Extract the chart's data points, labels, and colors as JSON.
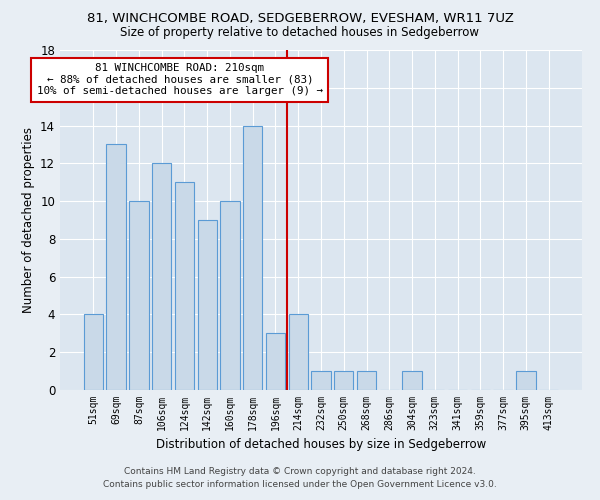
{
  "title": "81, WINCHCOMBE ROAD, SEDGEBERROW, EVESHAM, WR11 7UZ",
  "subtitle": "Size of property relative to detached houses in Sedgeberrow",
  "xlabel": "Distribution of detached houses by size in Sedgeberrow",
  "ylabel": "Number of detached properties",
  "bin_labels": [
    "51sqm",
    "69sqm",
    "87sqm",
    "106sqm",
    "124sqm",
    "142sqm",
    "160sqm",
    "178sqm",
    "196sqm",
    "214sqm",
    "232sqm",
    "250sqm",
    "268sqm",
    "286sqm",
    "304sqm",
    "323sqm",
    "341sqm",
    "359sqm",
    "377sqm",
    "395sqm",
    "413sqm"
  ],
  "bar_values": [
    4,
    13,
    10,
    12,
    11,
    9,
    10,
    14,
    3,
    4,
    1,
    1,
    1,
    0,
    1,
    0,
    0,
    0,
    0,
    1,
    0
  ],
  "bar_color": "#c9d9e8",
  "bar_edge_color": "#5b9bd5",
  "vline_color": "#cc0000",
  "annotation_line1": "81 WINCHCOMBE ROAD: 210sqm",
  "annotation_line2": "← 88% of detached houses are smaller (83)",
  "annotation_line3": "10% of semi-detached houses are larger (9) →",
  "annotation_box_facecolor": "#ffffff",
  "annotation_box_edgecolor": "#cc0000",
  "ylim": [
    0,
    18
  ],
  "yticks": [
    0,
    2,
    4,
    6,
    8,
    10,
    12,
    14,
    16,
    18
  ],
  "footer_line1": "Contains HM Land Registry data © Crown copyright and database right 2024.",
  "footer_line2": "Contains public sector information licensed under the Open Government Licence v3.0.",
  "background_color": "#e8eef4",
  "plot_background_color": "#dce6f0"
}
